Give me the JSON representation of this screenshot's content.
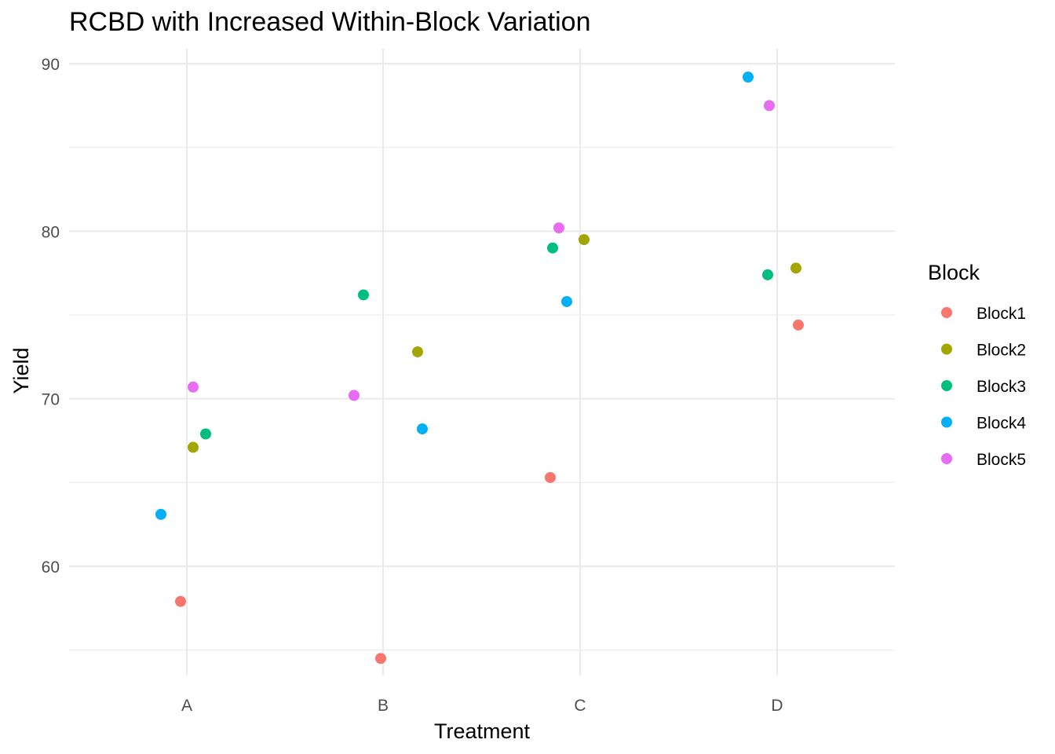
{
  "chart_data": {
    "type": "scatter",
    "title": "RCBD with Increased Within-Block Variation",
    "xlabel": "Treatment",
    "ylabel": "Yield",
    "categories": [
      "A",
      "B",
      "C",
      "D"
    ],
    "x_jitter_note": "",
    "ylim": [
      52.5,
      90.9
    ],
    "y_ticks": [
      60,
      70,
      80,
      90
    ],
    "grid": true,
    "legend": {
      "title": "Block",
      "placement": "right"
    },
    "series": [
      {
        "name": "Block1",
        "color": "#F8766D",
        "points": [
          {
            "category": "A",
            "y": 57.9
          },
          {
            "category": "B",
            "y": 54.5
          },
          {
            "category": "C",
            "y": 65.3
          },
          {
            "category": "D",
            "y": 74.4
          }
        ]
      },
      {
        "name": "Block2",
        "color": "#A3A500",
        "points": [
          {
            "category": "A",
            "y": 67.1
          },
          {
            "category": "B",
            "y": 72.8
          },
          {
            "category": "C",
            "y": 79.5
          },
          {
            "category": "D",
            "y": 77.8
          }
        ]
      },
      {
        "name": "Block3",
        "color": "#00BF7D",
        "points": [
          {
            "category": "A",
            "y": 67.9
          },
          {
            "category": "B",
            "y": 76.2
          },
          {
            "category": "C",
            "y": 79.0
          },
          {
            "category": "D",
            "y": 77.4
          }
        ]
      },
      {
        "name": "Block4",
        "color": "#00B0F6",
        "points": [
          {
            "category": "A",
            "y": 63.1
          },
          {
            "category": "B",
            "y": 68.2
          },
          {
            "category": "C",
            "y": 75.8
          },
          {
            "category": "D",
            "y": 89.2
          }
        ]
      },
      {
        "name": "Block5",
        "color": "#E76BF3",
        "points": [
          {
            "category": "A",
            "y": 70.7
          },
          {
            "category": "B",
            "y": 70.2
          },
          {
            "category": "C",
            "y": 80.2
          },
          {
            "category": "D",
            "y": 87.5
          }
        ]
      }
    ]
  }
}
